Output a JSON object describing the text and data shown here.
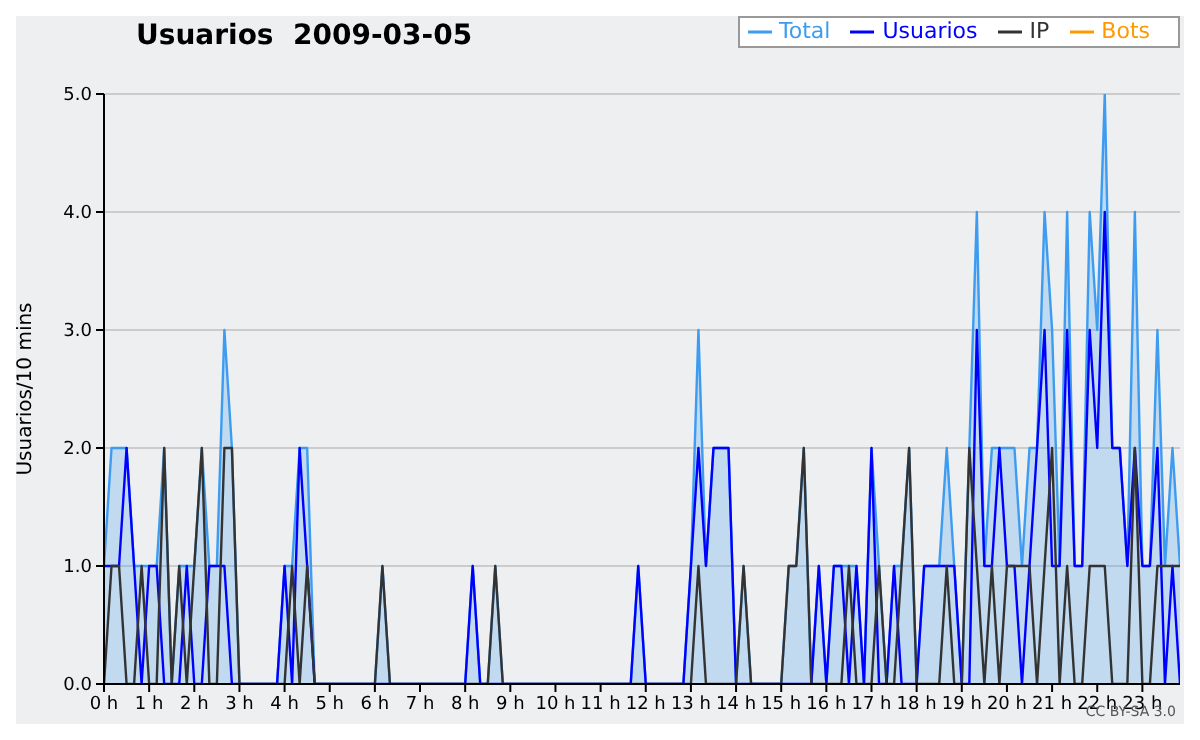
{
  "chart_data": {
    "type": "line",
    "title": "Usuarios  2009-03-05",
    "ylabel": "Usuarios/10 mins",
    "annotations": [
      "CC BY-SA 3.0"
    ],
    "x": [
      0,
      0.1667,
      0.3333,
      0.5,
      0.6667,
      0.8333,
      1,
      1.1667,
      1.3333,
      1.5,
      1.6667,
      1.8333,
      2,
      2.1667,
      2.3333,
      2.5,
      2.6667,
      2.8333,
      3,
      3.1667,
      3.3333,
      3.5,
      3.6667,
      3.8333,
      4,
      4.1667,
      4.3333,
      4.5,
      4.6667,
      4.8333,
      5,
      5.1667,
      5.3333,
      5.5,
      5.6667,
      5.8333,
      6,
      6.1667,
      6.3333,
      6.5,
      6.6667,
      6.8333,
      7,
      7.1667,
      7.3333,
      7.5,
      7.6667,
      7.8333,
      8,
      8.1667,
      8.3333,
      8.5,
      8.6667,
      8.8333,
      9,
      9.1667,
      9.3333,
      9.5,
      9.6667,
      9.8333,
      10,
      10.1667,
      10.3333,
      10.5,
      10.6667,
      10.8333,
      11,
      11.1667,
      11.3333,
      11.5,
      11.6667,
      11.8333,
      12,
      12.1667,
      12.3333,
      12.5,
      12.6667,
      12.8333,
      13,
      13.1667,
      13.3333,
      13.5,
      13.6667,
      13.8333,
      14,
      14.1667,
      14.3333,
      14.5,
      14.6667,
      14.8333,
      15,
      15.1667,
      15.3333,
      15.5,
      15.6667,
      15.8333,
      16,
      16.1667,
      16.3333,
      16.5,
      16.6667,
      16.8333,
      17,
      17.1667,
      17.3333,
      17.5,
      17.6667,
      17.8333,
      18,
      18.1667,
      18.3333,
      18.5,
      18.6667,
      18.8333,
      19,
      19.1667,
      19.3333,
      19.5,
      19.6667,
      19.8333,
      20,
      20.1667,
      20.3333,
      20.5,
      20.6667,
      20.8333,
      21,
      21.1667,
      21.3333,
      21.5,
      21.6667,
      21.8333,
      22,
      22.1667,
      22.3333,
      22.5,
      22.6667,
      22.8333,
      23,
      23.1667,
      23.3333,
      23.5,
      23.6667,
      23.8333
    ],
    "series": [
      {
        "name": "Total",
        "type": "area",
        "color": "#3d9cf0",
        "values": [
          1,
          2,
          2,
          2,
          1,
          1,
          1,
          1,
          2,
          0,
          1,
          1,
          1,
          2,
          1,
          1,
          3,
          2,
          0,
          0,
          0,
          0,
          0,
          0,
          1,
          1,
          2,
          2,
          0,
          0,
          0,
          0,
          0,
          0,
          0,
          0,
          0,
          1,
          0,
          0,
          0,
          0,
          0,
          0,
          0,
          0,
          0,
          0,
          0,
          1,
          0,
          0,
          1,
          0,
          0,
          0,
          0,
          0,
          0,
          0,
          0,
          0,
          0,
          0,
          0,
          0,
          0,
          0,
          0,
          0,
          0,
          1,
          0,
          0,
          0,
          0,
          0,
          0,
          1,
          3,
          1,
          2,
          2,
          2,
          0,
          1,
          0,
          0,
          0,
          0,
          0,
          1,
          1,
          2,
          0,
          1,
          0,
          1,
          1,
          1,
          1,
          0,
          2,
          1,
          0,
          1,
          1,
          2,
          0,
          1,
          1,
          1,
          2,
          1,
          0,
          2,
          4,
          1,
          2,
          2,
          2,
          2,
          1,
          2,
          2,
          4,
          3,
          1,
          4,
          1,
          1,
          4,
          3,
          5,
          2,
          2,
          1,
          4,
          1,
          1,
          3,
          1,
          2,
          1
        ]
      },
      {
        "name": "Usuarios",
        "color": "#0000ff",
        "values": [
          1,
          1,
          1,
          2,
          1,
          0,
          1,
          1,
          0,
          0,
          0,
          1,
          0,
          0,
          1,
          1,
          1,
          0,
          0,
          0,
          0,
          0,
          0,
          0,
          1,
          0,
          2,
          1,
          0,
          0,
          0,
          0,
          0,
          0,
          0,
          0,
          0,
          0,
          0,
          0,
          0,
          0,
          0,
          0,
          0,
          0,
          0,
          0,
          0,
          1,
          0,
          0,
          0,
          0,
          0,
          0,
          0,
          0,
          0,
          0,
          0,
          0,
          0,
          0,
          0,
          0,
          0,
          0,
          0,
          0,
          0,
          1,
          0,
          0,
          0,
          0,
          0,
          0,
          1,
          2,
          1,
          2,
          2,
          2,
          0,
          0,
          0,
          0,
          0,
          0,
          0,
          0,
          0,
          0,
          0,
          1,
          0,
          1,
          1,
          0,
          1,
          0,
          2,
          0,
          0,
          1,
          0,
          0,
          0,
          1,
          1,
          1,
          1,
          1,
          0,
          0,
          3,
          1,
          1,
          2,
          1,
          1,
          0,
          1,
          2,
          3,
          1,
          1,
          3,
          1,
          1,
          3,
          2,
          4,
          2,
          2,
          1,
          2,
          1,
          1,
          2,
          0,
          1,
          0
        ]
      },
      {
        "name": "IP",
        "color": "#333333",
        "values": [
          0,
          1,
          1,
          0,
          0,
          1,
          0,
          0,
          2,
          0,
          1,
          0,
          1,
          2,
          0,
          0,
          2,
          2,
          0,
          0,
          0,
          0,
          0,
          0,
          0,
          1,
          0,
          1,
          0,
          0,
          0,
          0,
          0,
          0,
          0,
          0,
          0,
          1,
          0,
          0,
          0,
          0,
          0,
          0,
          0,
          0,
          0,
          0,
          0,
          0,
          0,
          0,
          1,
          0,
          0,
          0,
          0,
          0,
          0,
          0,
          0,
          0,
          0,
          0,
          0,
          0,
          0,
          0,
          0,
          0,
          0,
          0,
          0,
          0,
          0,
          0,
          0,
          0,
          0,
          1,
          0,
          0,
          0,
          0,
          0,
          1,
          0,
          0,
          0,
          0,
          0,
          1,
          1,
          2,
          0,
          0,
          0,
          0,
          0,
          1,
          0,
          0,
          0,
          1,
          0,
          0,
          1,
          2,
          0,
          0,
          0,
          0,
          1,
          0,
          0,
          2,
          1,
          0,
          1,
          0,
          1,
          1,
          1,
          1,
          0,
          1,
          2,
          0,
          1,
          0,
          0,
          1,
          1,
          1,
          0,
          0,
          0,
          2,
          0,
          0,
          1,
          1,
          1,
          1
        ]
      },
      {
        "name": "Bots",
        "color": "#ff9900",
        "values": [
          null,
          null,
          null,
          null,
          null,
          null,
          null,
          null,
          null,
          null,
          null,
          null,
          null,
          null,
          null,
          null,
          null,
          null,
          null,
          null,
          null,
          null,
          null,
          null,
          null,
          null,
          null,
          null,
          null,
          null,
          null,
          null,
          null,
          null,
          null,
          null,
          null,
          null,
          null,
          null,
          null,
          null,
          null,
          null,
          null,
          null,
          null,
          null,
          null,
          null,
          null,
          null,
          null,
          null,
          null,
          null,
          null,
          null,
          null,
          null,
          null,
          null,
          null,
          null,
          null,
          null,
          null,
          null,
          null,
          null,
          null,
          null,
          null,
          null,
          null,
          null,
          null,
          null,
          null,
          null,
          null,
          null,
          null,
          null,
          null,
          null,
          null,
          null,
          null,
          null,
          null,
          null,
          null,
          null,
          null,
          null,
          null,
          null,
          null,
          null,
          null,
          null,
          null,
          null,
          null,
          null,
          null,
          null,
          null,
          null,
          null,
          null,
          null,
          null,
          null,
          null,
          null,
          null,
          null,
          null,
          null,
          null,
          null,
          null,
          null,
          null,
          null,
          null,
          null,
          null,
          null,
          null,
          null,
          null,
          null,
          null,
          null,
          null,
          null,
          null,
          null,
          null,
          null,
          null
        ]
      }
    ],
    "xlim": [
      0,
      23.8333
    ],
    "xticks": [
      {
        "value": 0,
        "label": "0 h"
      },
      {
        "value": 1,
        "label": "1 h"
      },
      {
        "value": 2,
        "label": "2 h"
      },
      {
        "value": 3,
        "label": "3 h"
      },
      {
        "value": 4,
        "label": "4 h"
      },
      {
        "value": 5,
        "label": "5 h"
      },
      {
        "value": 6,
        "label": "6 h"
      },
      {
        "value": 7,
        "label": "7 h"
      },
      {
        "value": 8,
        "label": "8 h"
      },
      {
        "value": 9,
        "label": "9 h"
      },
      {
        "value": 10,
        "label": "10 h"
      },
      {
        "value": 11,
        "label": "11 h"
      },
      {
        "value": 12,
        "label": "12 h"
      },
      {
        "value": 13,
        "label": "13 h"
      },
      {
        "value": 14,
        "label": "14 h"
      },
      {
        "value": 15,
        "label": "15 h"
      },
      {
        "value": 16,
        "label": "16 h"
      },
      {
        "value": 17,
        "label": "17 h"
      },
      {
        "value": 18,
        "label": "18 h"
      },
      {
        "value": 19,
        "label": "19 h"
      },
      {
        "value": 20,
        "label": "20 h"
      },
      {
        "value": 21,
        "label": "21 h"
      },
      {
        "value": 22,
        "label": "22 h"
      },
      {
        "value": 23,
        "label": "23 h"
      }
    ],
    "ylim": [
      0,
      5
    ],
    "yticks": [
      {
        "value": 0,
        "label": "0.0"
      },
      {
        "value": 1,
        "label": "1.0"
      },
      {
        "value": 2,
        "label": "2.0"
      },
      {
        "value": 3,
        "label": "3.0"
      },
      {
        "value": 4,
        "label": "4.0"
      },
      {
        "value": 5,
        "label": "5.0"
      }
    ],
    "grid": "y",
    "legend": "top right",
    "marker": "none",
    "line_style": "solid"
  }
}
